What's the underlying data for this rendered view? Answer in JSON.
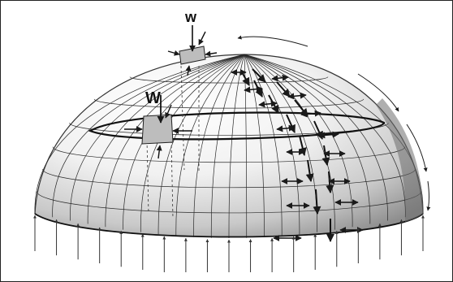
{
  "figure": {
    "label_top": "w",
    "label_mid": "W"
  },
  "colors": {
    "ink": "#1a1a1a",
    "dome_light": "#ffffff",
    "dome_mid": "#d9d9d9",
    "dome_dark": "#8a8a8a",
    "panel": "#bdbdbd",
    "border": "#222222"
  },
  "icons": [
    "down-arrow-icon",
    "double-arrow-icon",
    "support-arrow-icon"
  ]
}
